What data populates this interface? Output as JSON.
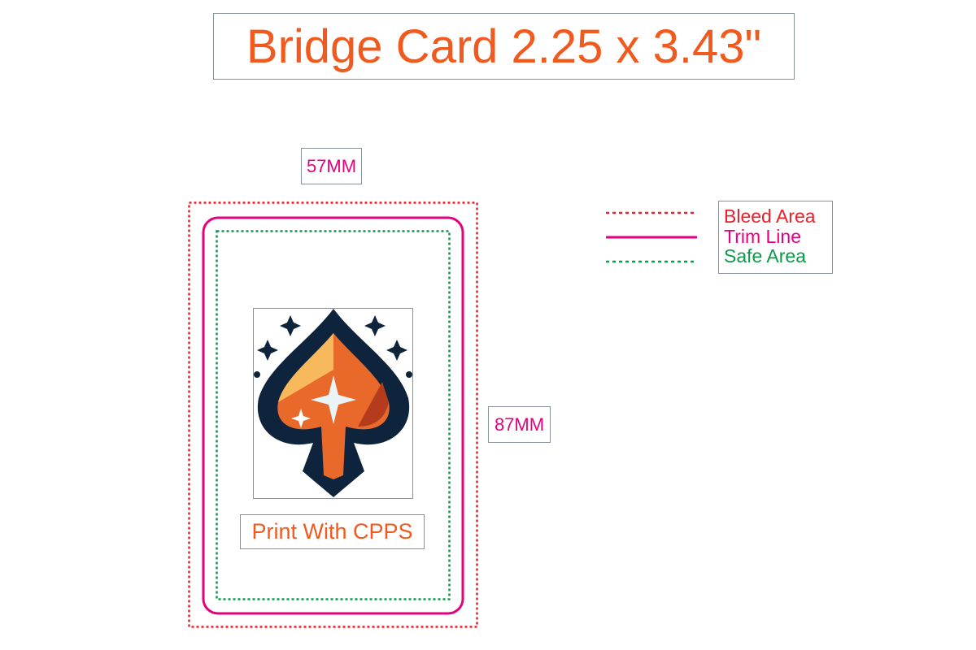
{
  "title": "Bridge Card 2.25 x 3.43\"",
  "dimensions": {
    "width_label": "57MM",
    "height_label": "87MM"
  },
  "card": {
    "caption": "Print With CPPS",
    "image": "spade-logo"
  },
  "legend": {
    "items": [
      {
        "label": "Bleed Area",
        "style": "dotted",
        "color": "#e8202a"
      },
      {
        "label": "Trim Line",
        "style": "solid",
        "color": "#e6007e"
      },
      {
        "label": "Safe Area",
        "style": "dotted",
        "color": "#0a9a48"
      }
    ]
  },
  "colors": {
    "title": "#f05a1e",
    "dimension": "#e6007e"
  }
}
